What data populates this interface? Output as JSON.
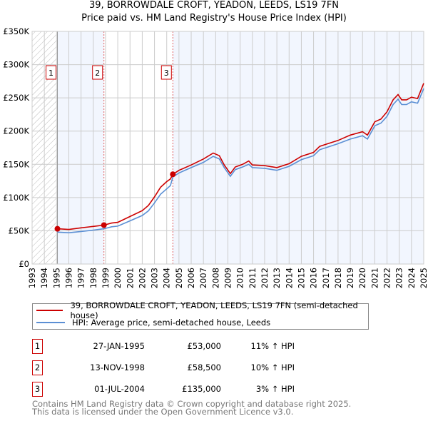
{
  "title_line1": "39, BORROWDALE CROFT, YEADON, LEEDS, LS19 7FN",
  "title_line2": "Price paid vs. HM Land Registry's House Price Index (HPI)",
  "chart_data": {
    "type": "line",
    "title": "39, BORROWDALE CROFT, YEADON, LEEDS, LS19 7FN — Price paid vs. HM Land Registry's House Price Index (HPI)",
    "xlim": [
      1993,
      2025
    ],
    "ylim": [
      0,
      350000
    ],
    "grid": true,
    "x_ticks": [
      "1993",
      "1994",
      "1995",
      "1996",
      "1997",
      "1998",
      "1999",
      "2000",
      "2001",
      "2002",
      "2003",
      "2004",
      "2005",
      "2006",
      "2007",
      "2008",
      "2009",
      "2010",
      "2011",
      "2012",
      "2013",
      "2014",
      "2015",
      "2016",
      "2017",
      "2018",
      "2019",
      "2020",
      "2021",
      "2022",
      "2023",
      "2024",
      "2025"
    ],
    "y_ticks": [
      {
        "v": 0,
        "label": "£0"
      },
      {
        "v": 50000,
        "label": "£50K"
      },
      {
        "v": 100000,
        "label": "£100K"
      },
      {
        "v": 150000,
        "label": "£150K"
      },
      {
        "v": 200000,
        "label": "£200K"
      },
      {
        "v": 250000,
        "label": "£250K"
      },
      {
        "v": 300000,
        "label": "£300K"
      },
      {
        "v": 350000,
        "label": "£350K"
      }
    ],
    "series": [
      {
        "name": "39, BORROWDALE CROFT, YEADON, LEEDS, LS19 7FN (semi-detached house)",
        "color": "#cc0000",
        "x": [
          1995.07,
          1996,
          1997,
          1998,
          1998.87,
          1999.5,
          2000,
          2001,
          2002,
          2002.5,
          2003,
          2003.5,
          2004,
          2004.3,
          2004.5,
          2005,
          2006,
          2007,
          2007.8,
          2008.3,
          2008.7,
          2009.2,
          2009.6,
          2010.2,
          2010.7,
          2011,
          2012,
          2013,
          2014,
          2015,
          2016,
          2016.5,
          2017,
          2018,
          2019,
          2020,
          2020.4,
          2021,
          2021.5,
          2022,
          2022.5,
          2022.9,
          2023.2,
          2023.6,
          2024,
          2024.5,
          2025
        ],
        "y": [
          53000,
          52000,
          54400,
          56600,
          58500,
          61600,
          62700,
          71500,
          80300,
          88000,
          101000,
          115500,
          124000,
          128000,
          135000,
          141000,
          149000,
          158000,
          167000,
          163000,
          149000,
          136000,
          146000,
          150000,
          155000,
          149000,
          148000,
          145000,
          151000,
          162000,
          168000,
          177000,
          180000,
          186000,
          194000,
          199000,
          194000,
          214000,
          218000,
          229000,
          247000,
          255000,
          247000,
          247000,
          251000,
          249000,
          272000
        ]
      },
      {
        "name": "HPI: Average price, semi-detached house, Leeds",
        "color": "#5b8fd4",
        "x": [
          1995.07,
          1996,
          1997,
          1998,
          1998.87,
          1999.5,
          2000,
          2001,
          2002,
          2002.5,
          2003,
          2003.5,
          2004,
          2004.3,
          2004.5,
          2005,
          2006,
          2007,
          2007.8,
          2008.3,
          2008.7,
          2009.2,
          2009.6,
          2010.2,
          2010.7,
          2011,
          2012,
          2013,
          2014,
          2015,
          2016,
          2016.5,
          2017,
          2018,
          2019,
          2020,
          2020.4,
          2021,
          2021.5,
          2022,
          2022.5,
          2022.9,
          2023.2,
          2023.6,
          2024,
          2024.5,
          2025
        ],
        "y": [
          48000,
          47000,
          49000,
          51000,
          53000,
          56000,
          57000,
          65000,
          73000,
          80000,
          92000,
          105000,
          113000,
          118000,
          131000,
          137000,
          145000,
          153000,
          162000,
          158000,
          145000,
          132000,
          142000,
          146000,
          150000,
          145000,
          144000,
          141000,
          147000,
          157000,
          163000,
          172000,
          175000,
          181000,
          188000,
          193000,
          188000,
          208000,
          212000,
          222000,
          240000,
          248000,
          240000,
          240000,
          244000,
          242000,
          264000
        ]
      }
    ],
    "sales": [
      {
        "label": "1",
        "x": 1995.07,
        "y": 53000,
        "date": "27-JAN-1995",
        "price": "£53,000",
        "hpi": "11% ↑ HPI"
      },
      {
        "label": "2",
        "x": 1998.87,
        "y": 58500,
        "date": "13-NOV-1998",
        "price": "£58,500",
        "hpi": "10% ↑ HPI"
      },
      {
        "label": "3",
        "x": 2004.5,
        "y": 135000,
        "date": "01-JUL-2004",
        "price": "£135,000",
        "hpi": "3% ↑ HPI"
      }
    ],
    "legend_placement": "below"
  },
  "footer_line1": "Contains HM Land Registry data © Crown copyright and database right 2025.",
  "footer_line2": "This data is licensed under the Open Government Licence v3.0."
}
